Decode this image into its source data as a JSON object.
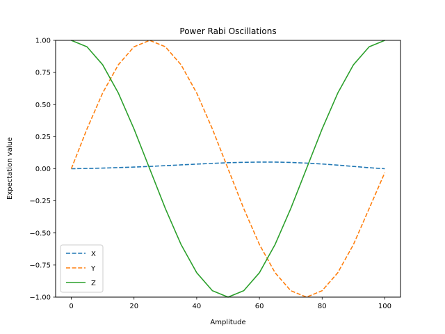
{
  "chart_data": {
    "type": "line",
    "title": "Power Rabi Oscillations",
    "xlabel": "Amplitude",
    "ylabel": "Expectation value",
    "xlim": [
      -5,
      105
    ],
    "ylim": [
      -1.0,
      1.0
    ],
    "x_ticks": [
      0,
      20,
      40,
      60,
      80,
      100
    ],
    "x_tick_labels": [
      "0",
      "20",
      "40",
      "60",
      "80",
      "100"
    ],
    "y_ticks": [
      -1.0,
      -0.75,
      -0.5,
      -0.25,
      0.0,
      0.25,
      0.5,
      0.75,
      1.0
    ],
    "y_tick_labels": [
      "−1.00",
      "−0.75",
      "−0.50",
      "−0.25",
      "0.00",
      "0.25",
      "0.50",
      "0.75",
      "1.00"
    ],
    "grid": false,
    "legend_position": "lower-left",
    "x": [
      0,
      5,
      10,
      15,
      20,
      25,
      30,
      35,
      40,
      45,
      50,
      55,
      60,
      65,
      70,
      75,
      80,
      85,
      90,
      95,
      100
    ],
    "series": [
      {
        "name": "X",
        "color": "#1f77b4",
        "dash": "dashed",
        "values": [
          0.0,
          0.002,
          0.005,
          0.009,
          0.013,
          0.018,
          0.024,
          0.03,
          0.036,
          0.042,
          0.047,
          0.05,
          0.052,
          0.052,
          0.049,
          0.044,
          0.037,
          0.028,
          0.018,
          0.008,
          0.0
        ]
      },
      {
        "name": "Y",
        "color": "#ff7f0e",
        "dash": "dashed",
        "values": [
          0.0,
          0.31,
          0.59,
          0.81,
          0.95,
          1.0,
          0.95,
          0.81,
          0.59,
          0.31,
          0.0,
          -0.31,
          -0.59,
          -0.81,
          -0.95,
          -1.0,
          -0.95,
          -0.81,
          -0.59,
          -0.31,
          -0.03
        ]
      },
      {
        "name": "Z",
        "color": "#2ca02c",
        "dash": "solid",
        "values": [
          1.0,
          0.95,
          0.81,
          0.59,
          0.31,
          0.0,
          -0.31,
          -0.59,
          -0.81,
          -0.95,
          -1.0,
          -0.95,
          -0.81,
          -0.59,
          -0.31,
          0.0,
          0.31,
          0.59,
          0.81,
          0.95,
          1.0
        ]
      }
    ]
  }
}
